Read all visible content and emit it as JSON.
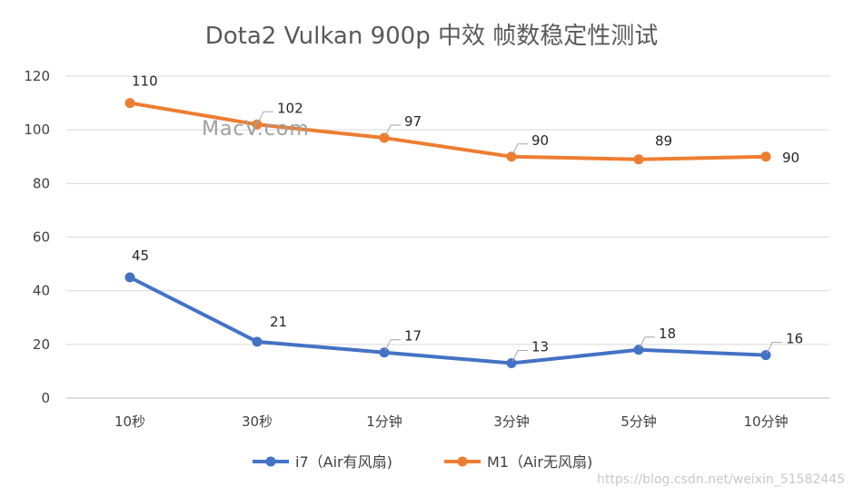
{
  "chart_data": {
    "type": "line",
    "title": "Dota2 Vulkan 900p 中效 帧数稳定性测试",
    "categories": [
      "10秒",
      "30秒",
      "1分钟",
      "3分钟",
      "5分钟",
      "10分钟"
    ],
    "series": [
      {
        "name": "i7（Air有风扇)",
        "color": "#4472C4",
        "values": [
          45,
          21,
          17,
          13,
          18,
          16
        ]
      },
      {
        "name": "M1（Air无风扇)",
        "color": "#ED7D31",
        "values": [
          110,
          102,
          97,
          90,
          89,
          90
        ]
      }
    ],
    "ylim": [
      0,
      120
    ],
    "yticks": [
      0,
      20,
      40,
      60,
      80,
      100,
      120
    ],
    "grid": true,
    "legend": "bottom",
    "xlabel": "",
    "ylabel": ""
  },
  "watermark": "MacV.com",
  "credit": "https://blog.csdn.net/weixin_51582445",
  "colors": {
    "grid": "#d9d9d9",
    "axis": "#bfbfbf"
  }
}
